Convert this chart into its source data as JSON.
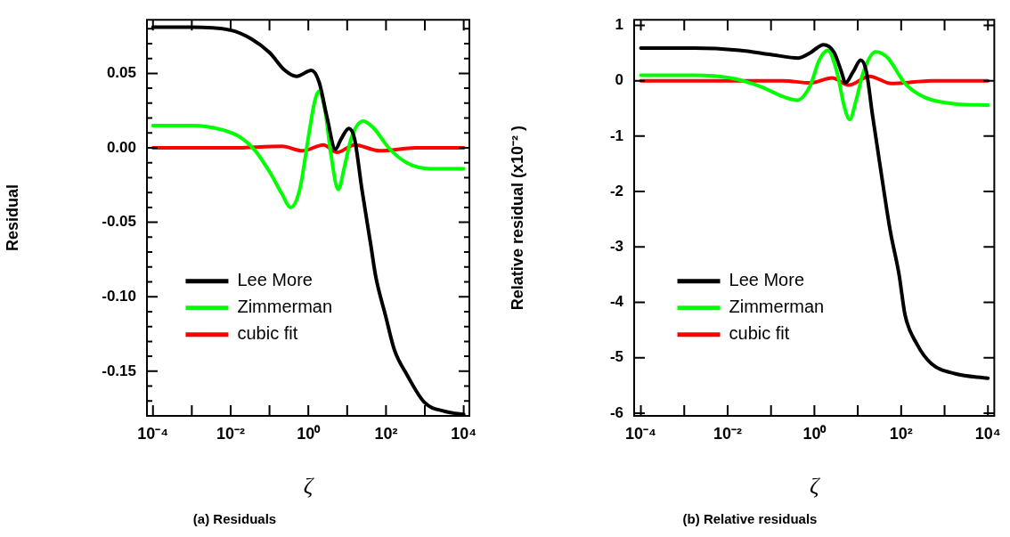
{
  "chart_data": [
    {
      "type": "line",
      "title": "(a) Residuals",
      "xlabel": "ζ",
      "ylabel": "Residual",
      "log": "x",
      "legend": "bottom left",
      "xlim": [
        7e-05,
        14000
      ],
      "ylim": [
        -0.18,
        0.086
      ],
      "xticks": [
        {
          "value": 0.0001,
          "label": "10⁻⁴"
        },
        {
          "value": 0.001,
          "label": null
        },
        {
          "value": 0.01,
          "label": "10⁻²"
        },
        {
          "value": 0.1,
          "label": null
        },
        {
          "value": 1,
          "label": "10⁰"
        },
        {
          "value": 10,
          "label": null
        },
        {
          "value": 100,
          "label": "10²"
        },
        {
          "value": 1000,
          "label": null
        },
        {
          "value": 10000,
          "label": "10⁴"
        }
      ],
      "yticks": [
        {
          "value": 0.08,
          "label": null
        },
        {
          "value": 0.07,
          "label": null
        },
        {
          "value": 0.06,
          "label": null
        },
        0.05,
        {
          "value": 0.04,
          "label": null
        },
        {
          "value": 0.03,
          "label": null
        },
        {
          "value": 0.02,
          "label": null
        },
        {
          "value": 0.01,
          "label": null
        },
        {
          "value": 0,
          "label": "0.00"
        },
        {
          "value": -0.01,
          "label": null
        },
        {
          "value": -0.02,
          "label": null
        },
        {
          "value": -0.03,
          "label": null
        },
        {
          "value": -0.04,
          "label": null
        },
        -0.05,
        {
          "value": -0.06,
          "label": null
        },
        {
          "value": -0.07,
          "label": null
        },
        {
          "value": -0.08,
          "label": null
        },
        {
          "value": -0.09,
          "label": null
        },
        {
          "value": -0.1,
          "label": "-0.10"
        },
        {
          "value": -0.11,
          "label": null
        },
        {
          "value": -0.12,
          "label": null
        },
        {
          "value": -0.13,
          "label": null
        },
        {
          "value": -0.14,
          "label": null
        },
        -0.15,
        {
          "value": -0.16,
          "label": null
        },
        {
          "value": -0.17,
          "label": null
        }
      ],
      "series": [
        {
          "name": "Lee More",
          "color": "#000000",
          "x": [
            0.0001,
            0.001,
            0.01,
            0.035,
            0.1,
            0.25,
            0.5,
            1.2,
            1.9,
            3,
            5,
            7,
            11,
            15.5,
            24,
            41,
            54,
            98,
            166,
            340,
            980,
            3300,
            10000
          ],
          "values": [
            0.081,
            0.081,
            0.079,
            0.073,
            0.064,
            0.052,
            0.048,
            0.052,
            0.044,
            0.021,
            -0.001,
            0.006,
            0.013,
            0.006,
            -0.028,
            -0.066,
            -0.086,
            -0.113,
            -0.136,
            -0.152,
            -0.171,
            -0.177,
            -0.179
          ]
        },
        {
          "name": "Zimmerman",
          "color": "#00ff00",
          "x": [
            0.0001,
            0.001,
            0.0062,
            0.018,
            0.043,
            0.1,
            0.21,
            0.35,
            0.6,
            1,
            1.45,
            1.86,
            2.7,
            3.8,
            5.9,
            8.3,
            12.9,
            26,
            49,
            117,
            340,
            1380,
            10000
          ],
          "values": [
            0.015,
            0.015,
            0.012,
            0.007,
            -0.002,
            -0.016,
            -0.031,
            -0.04,
            -0.028,
            0.007,
            0.031,
            0.038,
            0.025,
            -0.004,
            -0.028,
            -0.014,
            0.007,
            0.018,
            0.013,
            0,
            -0.01,
            -0.014,
            -0.014
          ]
        },
        {
          "name": "cubic fit",
          "color": "#ff0000",
          "x": [
            0.0001,
            0.0105,
            0.21,
            0.71,
            2.45,
            5.5,
            15.5,
            69,
            575,
            10000
          ],
          "values": [
            0,
            0,
            0.001,
            -0.002,
            0.002,
            -0.003,
            0.002,
            -0.002,
            0,
            0
          ]
        }
      ]
    },
    {
      "type": "line",
      "title": "(b) Relative residuals",
      "xlabel": "ζ",
      "ylabel": "Relative residual (x10⁻² )",
      "log": "x",
      "legend": "bottom left",
      "xlim": [
        7e-05,
        14000
      ],
      "ylim": [
        -6.05,
        1.1
      ],
      "xticks": [
        {
          "value": 0.0001,
          "label": "10⁻⁴"
        },
        {
          "value": 0.001,
          "label": null
        },
        {
          "value": 0.01,
          "label": "10⁻²"
        },
        {
          "value": 0.1,
          "label": null
        },
        {
          "value": 1,
          "label": "10⁰"
        },
        {
          "value": 10,
          "label": null
        },
        {
          "value": 100,
          "label": "10²"
        },
        {
          "value": 1000,
          "label": null
        },
        {
          "value": 10000,
          "label": "10⁴"
        }
      ],
      "yticks": [
        1,
        0,
        -1,
        -2,
        -3,
        -4,
        -5,
        -6
      ],
      "series": [
        {
          "name": "Lee More",
          "color": "#000000",
          "x": [
            0.0001,
            0.0017,
            0.0186,
            0.105,
            0.43,
            0.79,
            1.62,
            2.8,
            4.2,
            5.2,
            7.8,
            11.7,
            15.8,
            21.9,
            34.7,
            56,
            89,
            123,
            229,
            501,
            1780,
            10000
          ],
          "values": [
            0.59,
            0.59,
            0.55,
            0.47,
            0.41,
            0.5,
            0.65,
            0.52,
            0.16,
            -0.04,
            0.16,
            0.37,
            0.16,
            -0.63,
            -1.67,
            -2.71,
            -3.49,
            -4.23,
            -4.75,
            -5.11,
            -5.29,
            -5.37
          ]
        },
        {
          "name": "Zimmerman",
          "color": "#00ff00",
          "x": [
            0.0001,
            0.0017,
            0.0115,
            0.055,
            0.195,
            0.4,
            0.79,
            1.29,
            2.04,
            3.3,
            4.9,
            6.5,
            9.1,
            13.5,
            25.7,
            48,
            123,
            372,
            1780,
            10000
          ],
          "values": [
            0.1,
            0.1,
            0.05,
            -0.1,
            -0.29,
            -0.35,
            -0.1,
            0.37,
            0.55,
            0.16,
            -0.47,
            -0.7,
            -0.36,
            0.16,
            0.52,
            0.42,
            -0.05,
            -0.31,
            -0.42,
            -0.44
          ]
        },
        {
          "name": "cubic fit",
          "color": "#ff0000",
          "x": [
            0.0001,
            0.195,
            0.79,
            2.57,
            6.2,
            18.6,
            60,
            501,
            10000
          ],
          "values": [
            0,
            0,
            -0.04,
            0.05,
            -0.08,
            0.08,
            -0.05,
            0,
            0
          ]
        }
      ]
    }
  ]
}
